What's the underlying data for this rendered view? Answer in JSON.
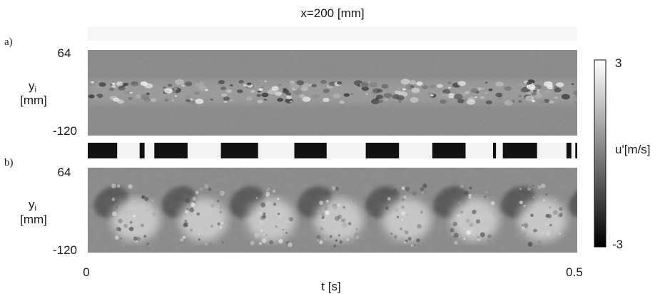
{
  "figure": {
    "title": "x=200 [mm]",
    "panel_a_label": "a)",
    "panel_b_label": "b)",
    "ylabel_y": "y",
    "ylabel_sub": "i",
    "ylabel_unit": "[mm]",
    "xlabel": "t [s]"
  },
  "chart_data": [
    {
      "type": "heatmap",
      "panel": "a)",
      "title": "x=200 [mm]",
      "xlabel": "t [s]",
      "ylabel": "yi [mm]",
      "xlim": [
        0,
        0.5
      ],
      "ylim": [
        -120,
        64
      ],
      "xticks": [
        "0",
        "0.5"
      ],
      "yticks": [
        "64",
        "-120"
      ],
      "description": "thin turbulent band of u' fluctuations near mid-height"
    },
    {
      "type": "heatmap",
      "panel": "b)",
      "xlabel": "t [s]",
      "ylabel": "yi [mm]",
      "xlim": [
        0,
        0.5
      ],
      "ylim": [
        -120,
        64
      ],
      "xticks": [
        "0",
        "0.5"
      ],
      "yticks": [
        "64",
        "-120"
      ],
      "description": "periodic large-scale structures (bright lower lobes) repeating along time"
    },
    {
      "type": "bar",
      "description": "binary time indicator strip between panels (black = on)",
      "on_intervals_s": [
        [
          0.0,
          0.03
        ],
        [
          0.053,
          0.058
        ],
        [
          0.068,
          0.102
        ],
        [
          0.136,
          0.174
        ],
        [
          0.211,
          0.244
        ],
        [
          0.284,
          0.318
        ],
        [
          0.352,
          0.386
        ],
        [
          0.414,
          0.417
        ],
        [
          0.424,
          0.459
        ],
        [
          0.489,
          0.494
        ],
        [
          0.498,
          0.5
        ]
      ]
    }
  ],
  "colorbar": {
    "label": "u'[m/s]",
    "max_label": "3",
    "min_label": "-3",
    "vmin": -3,
    "vmax": 3,
    "colors": [
      "#000000",
      "#ffffff"
    ]
  }
}
